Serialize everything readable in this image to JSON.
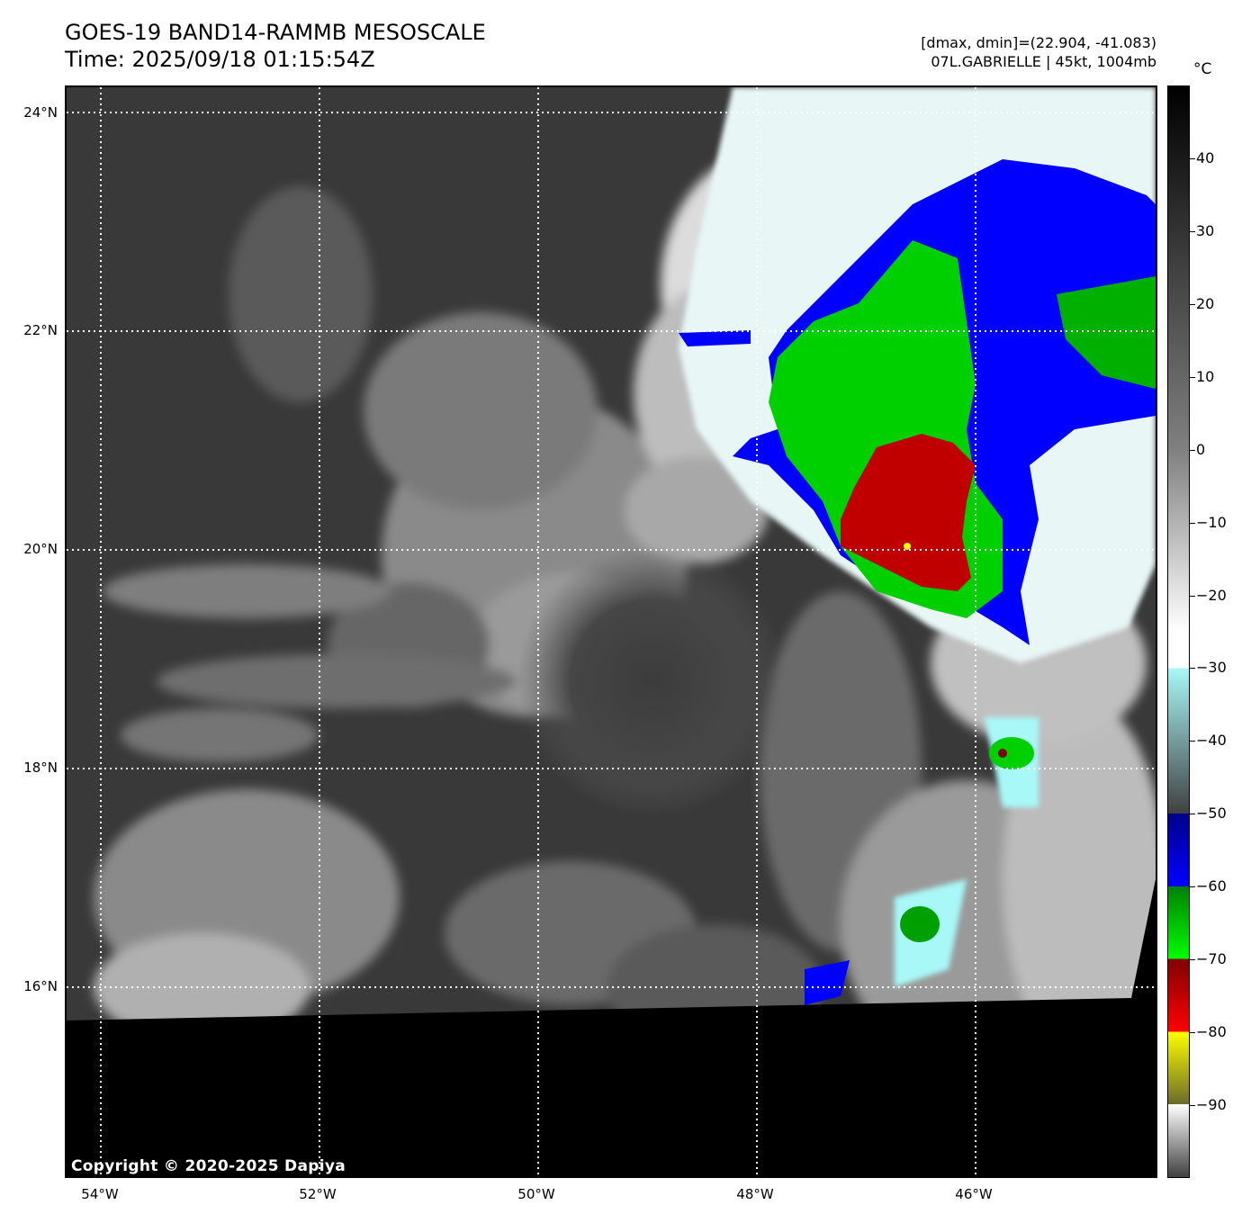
{
  "header": {
    "title_line1": "GOES-19 BAND14-RAMMB MESOSCALE",
    "title_line2": "Time: 2025/09/18 01:15:54Z",
    "meta_line1": "[dmax, dmin]=(22.904, -41.083)",
    "meta_line2": "07L.GABRIELLE | 45kt, 1004mb"
  },
  "colorbar": {
    "unit": "°C",
    "ticks": [
      "40",
      "30",
      "20",
      "10",
      "0",
      "−10",
      "−20",
      "−30",
      "−40",
      "−50",
      "−60",
      "−70",
      "−80",
      "−90"
    ],
    "tick_values": [
      40,
      30,
      20,
      10,
      0,
      -10,
      -20,
      -30,
      -40,
      -50,
      -60,
      -70,
      -80,
      -90
    ],
    "range": [
      -100,
      50
    ],
    "colors": {
      "warm_black": "#000000",
      "mid_gray": "#808080",
      "white": "#ffffff",
      "cyan": "#a8f8f8",
      "dark_gray": "#404040",
      "navy": "#00008b",
      "blue": "#0000ff",
      "dark_green": "#007f00",
      "green": "#00ff00",
      "maroon": "#800000",
      "red": "#ff0000",
      "yellow": "#ffff00",
      "olive": "#6b6b2a"
    }
  },
  "map": {
    "lat_labels": [
      "24°N",
      "22°N",
      "20°N",
      "18°N",
      "16°N"
    ],
    "lat_values": [
      24,
      22,
      20,
      18,
      16
    ],
    "lon_labels": [
      "54°W",
      "52°W",
      "50°W",
      "48°W",
      "46°W"
    ],
    "lon_values": [
      -54,
      -52,
      -50,
      -48,
      -46
    ],
    "copyright": "Copyright © 2020-2025 Dapiya"
  }
}
